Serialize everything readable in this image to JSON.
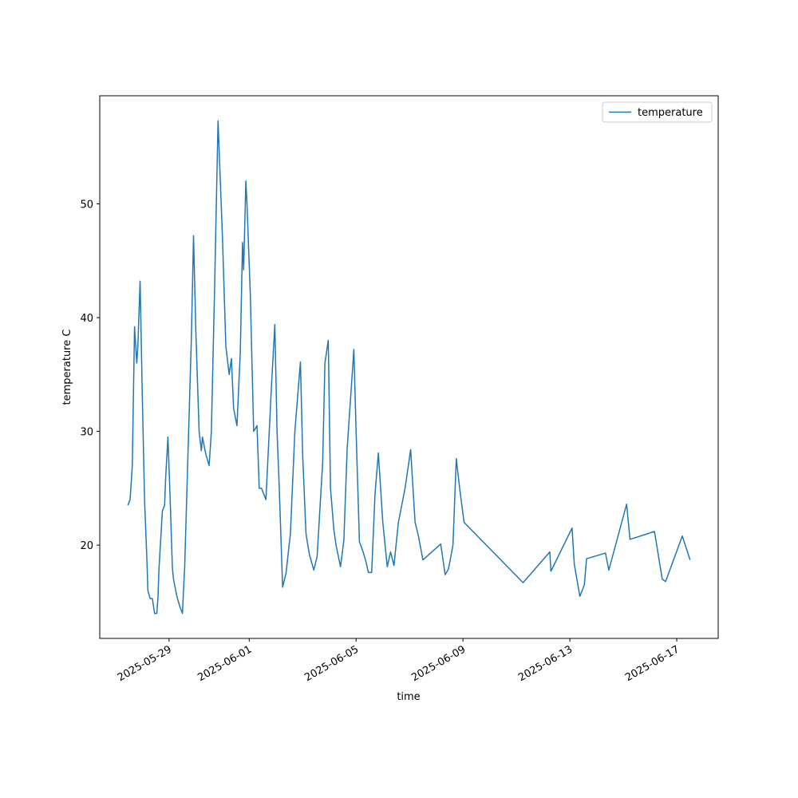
{
  "chart_data": {
    "type": "line",
    "xlabel": "time",
    "ylabel": "temperature C",
    "legend": "upper right",
    "xlim": [
      "2025-05-26T09:45",
      "2025-06-18T13:15"
    ],
    "ylim": [
      11.8,
      59.5
    ],
    "xticks": [
      "2025-05-29",
      "2025-06-01",
      "2025-06-05",
      "2025-06-09",
      "2025-06-13",
      "2025-06-17"
    ],
    "yticks": [
      20,
      30,
      40,
      50
    ],
    "x": [
      "2025-05-27T11:00",
      "2025-05-27T13:00",
      "2025-05-27T15:00",
      "2025-05-27T17:00",
      "2025-05-27T19:00",
      "2025-05-27T20:00",
      "2025-05-27T22:00",
      "2025-05-28T00:00",
      "2025-05-28T02:00",
      "2025-05-28T04:00",
      "2025-05-28T05:00",
      "2025-05-28T07:00",
      "2025-05-28T09:00",
      "2025-05-28T11:00",
      "2025-05-28T13:00",
      "2025-05-28T14:00",
      "2025-05-28T15:00",
      "2025-05-28T18:00",
      "2025-05-28T20:00",
      "2025-05-28T21:00",
      "2025-05-28T23:00",
      "2025-05-29T01:00",
      "2025-05-29T03:00",
      "2025-05-29T04:00",
      "2025-05-29T07:00",
      "2025-05-29T10:00",
      "2025-05-29T12:00",
      "2025-05-29T14:00",
      "2025-05-29T17:00",
      "2025-05-29T20:00",
      "2025-05-29T22:00",
      "2025-05-30T00:00",
      "2025-05-30T03:00",
      "2025-05-30T05:00",
      "2025-05-30T06:00",
      "2025-05-30T09:00",
      "2025-05-30T12:00",
      "2025-05-30T14:00",
      "2025-05-30T17:00",
      "2025-05-30T20:00",
      "2025-05-31T00:00",
      "2025-05-31T03:00",
      "2025-05-31T06:00",
      "2025-05-31T08:00",
      "2025-05-31T10:00",
      "2025-05-31T13:00",
      "2025-05-31T16:00",
      "2025-05-31T18:00",
      "2025-05-31T19:00",
      "2025-05-31T21:00",
      "2025-05-31T22:00",
      "2025-06-01T01:00",
      "2025-06-01T04:00",
      "2025-06-01T07:00",
      "2025-06-01T09:00",
      "2025-06-01T11:00",
      "2025-06-01T15:00",
      "2025-06-01T18:00",
      "2025-06-01T20:00",
      "2025-06-01T23:00",
      "2025-06-02T01:00",
      "2025-06-02T03:00",
      "2025-06-02T06:00",
      "2025-06-02T09:00",
      "2025-06-02T13:00",
      "2025-06-02T17:00",
      "2025-06-02T22:00",
      "2025-06-03T00:00",
      "2025-06-03T03:00",
      "2025-06-03T06:00",
      "2025-06-03T10:00",
      "2025-06-03T13:00",
      "2025-06-03T16:00",
      "2025-06-03T18:00",
      "2025-06-03T20:00",
      "2025-06-03T23:00",
      "2025-06-04T01:00",
      "2025-06-04T04:00",
      "2025-06-04T06:00",
      "2025-06-04T10:00",
      "2025-06-04T13:00",
      "2025-06-04T16:00",
      "2025-06-04T22:00",
      "2025-06-05T00:00",
      "2025-06-05T03:00",
      "2025-06-05T06:00",
      "2025-06-05T09:00",
      "2025-06-05T11:00",
      "2025-06-05T14:00",
      "2025-06-05T17:00",
      "2025-06-05T20:00",
      "2025-06-06T00:00",
      "2025-06-06T04:00",
      "2025-06-06T07:00",
      "2025-06-06T10:00",
      "2025-06-06T14:00",
      "2025-06-06T20:00",
      "2025-06-07T01:00",
      "2025-06-07T05:00",
      "2025-06-07T08:00",
      "2025-06-07T12:00",
      "2025-06-08T04:00",
      "2025-06-08T08:00",
      "2025-06-08T11:00",
      "2025-06-08T15:00",
      "2025-06-08T18:00",
      "2025-06-08T21:00",
      "2025-06-09T01:00",
      "2025-06-10T15:00",
      "2025-06-11T06:00",
      "2025-06-12T06:00",
      "2025-06-12T07:00",
      "2025-06-13T02:00",
      "2025-06-13T04:00",
      "2025-06-13T09:00",
      "2025-06-13T13:00",
      "2025-06-13T15:00",
      "2025-06-14T08:00",
      "2025-06-14T11:00",
      "2025-06-15T03:00",
      "2025-06-15T06:00",
      "2025-06-16T04:00",
      "2025-06-16T11:00",
      "2025-06-16T14:00",
      "2025-06-17T05:00",
      "2025-06-17T07:00",
      "2025-06-17T12:00"
    ],
    "series": [
      {
        "name": "temperature",
        "color": "#1f77b4",
        "values": [
          23.5,
          24,
          27,
          39.2,
          36,
          37.5,
          43.2,
          33,
          24,
          19,
          16,
          15.3,
          15.3,
          14,
          14,
          15.3,
          18,
          23,
          23.5,
          26,
          29.5,
          24,
          18,
          17,
          15.5,
          14.5,
          14,
          18,
          28,
          38,
          47.2,
          39,
          30,
          28.3,
          29.5,
          28,
          27,
          30,
          43,
          57.3,
          47,
          37.5,
          35,
          36.4,
          32,
          30.5,
          37,
          46.6,
          44.2,
          52,
          50,
          42,
          30,
          30.5,
          25,
          25,
          24,
          30,
          34,
          39.4,
          30,
          25,
          16.3,
          17.5,
          21,
          30,
          36.1,
          28,
          21,
          19.2,
          17.8,
          19,
          24,
          27.3,
          36,
          38,
          25,
          21.4,
          20,
          18.1,
          20.4,
          28.5,
          37.2,
          30,
          20.3,
          19.5,
          18.5,
          17.6,
          17.6,
          24.5,
          28.1,
          22,
          18.1,
          19.4,
          18.2,
          22,
          25,
          28.4,
          22,
          20.8,
          18.7,
          20.1,
          17.4,
          17.9,
          20,
          27.6,
          25,
          22,
          18.2,
          16.7,
          19.4,
          17.7,
          21.5,
          18.3,
          15.5,
          16.5,
          18.8,
          19.3,
          17.8,
          23.6,
          20.5,
          21.2,
          17,
          16.8,
          20.8,
          20.2,
          18.7
        ]
      }
    ]
  }
}
